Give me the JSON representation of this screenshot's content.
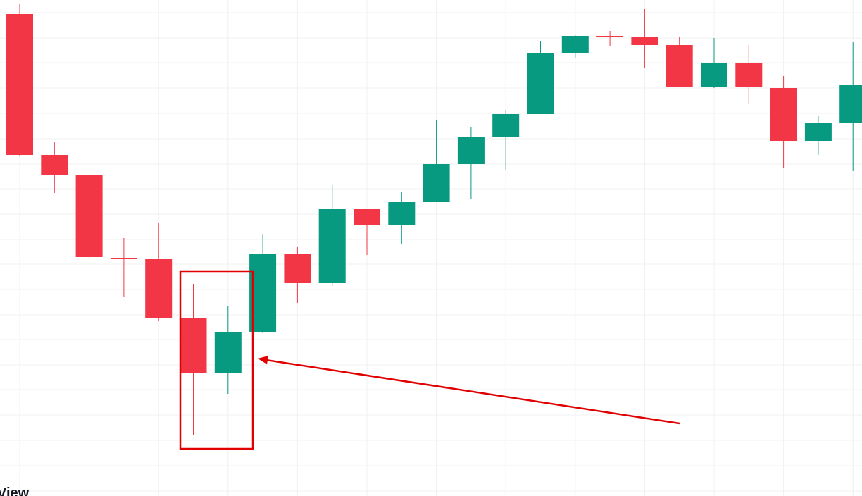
{
  "chart_data": {
    "type": "candlestick",
    "categories": [
      null,
      null,
      null,
      null,
      null,
      null,
      null,
      null,
      null,
      null,
      null,
      null,
      null,
      null,
      null,
      null,
      null,
      null,
      null,
      null,
      null,
      null,
      null,
      null,
      null
    ],
    "open": [
      684,
      484,
      456,
      338,
      337,
      252,
      174,
      233,
      344,
      303,
      407,
      384,
      417,
      471,
      509,
      542,
      629,
      653,
      652,
      640,
      580,
      614,
      579,
      504,
      529
    ],
    "high": [
      698,
      502,
      456,
      366,
      387,
      301,
      270,
      372,
      354,
      441,
      407,
      431,
      534,
      524,
      548,
      646,
      654,
      660,
      691,
      652,
      650,
      640,
      596,
      540,
      644
    ],
    "low": [
      482,
      430,
      336,
      282,
      249,
      87,
      145,
      231,
      274,
      298,
      342,
      357,
      417,
      422,
      463,
      542,
      621,
      638,
      608,
      581,
      579,
      556,
      466,
      484,
      462
    ],
    "close": [
      484,
      456,
      339,
      337,
      252,
      175,
      233,
      343,
      303,
      408,
      384,
      417,
      471,
      509,
      542,
      629,
      653,
      652,
      640,
      581,
      614,
      580,
      504,
      529,
      584
    ],
    "up_color": "#089981",
    "down_color": "#f23645",
    "ylim": [
      0,
      704
    ],
    "yticks": [
      686,
      650,
      615,
      579,
      543,
      507,
      471,
      436,
      400,
      364,
      329,
      293,
      257,
      222,
      186,
      151,
      115,
      79,
      43,
      7
    ],
    "grid": true,
    "watermark": "View"
  }
}
